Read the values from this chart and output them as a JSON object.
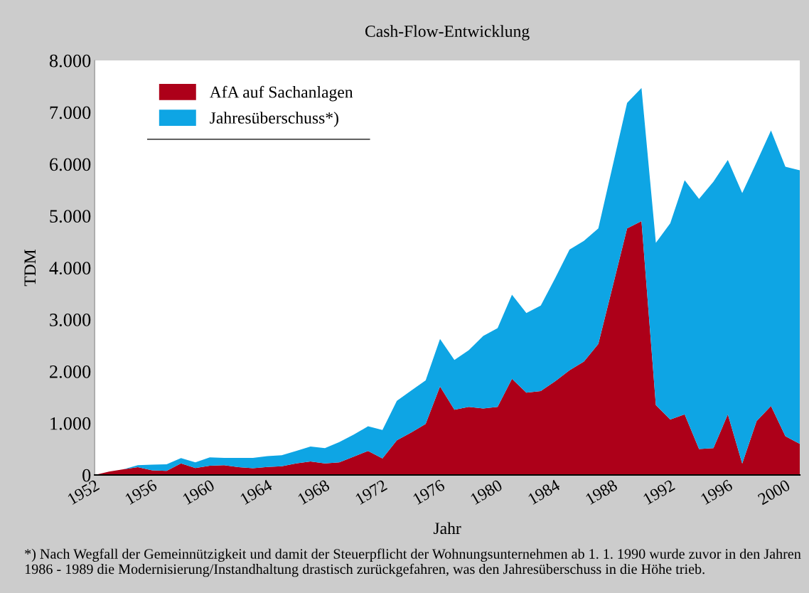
{
  "chart_data": {
    "type": "area",
    "stacked": true,
    "title": "Cash-Flow-Entwicklung",
    "xlabel": "Jahr",
    "ylabel": "TDM",
    "x": [
      1952,
      1953,
      1954,
      1955,
      1956,
      1957,
      1958,
      1959,
      1960,
      1961,
      1962,
      1963,
      1964,
      1965,
      1966,
      1967,
      1968,
      1969,
      1970,
      1971,
      1972,
      1973,
      1974,
      1975,
      1976,
      1977,
      1978,
      1979,
      1980,
      1981,
      1982,
      1983,
      1984,
      1985,
      1986,
      1987,
      1988,
      1989,
      1990,
      1991,
      1992,
      1993,
      1994,
      1995,
      1996,
      1997,
      1998,
      1999,
      2000,
      2001
    ],
    "series": [
      {
        "name": "AfA auf Sachanlagen",
        "color": "#ad0019",
        "values": [
          0,
          65,
          110,
          150,
          90,
          80,
          225,
          135,
          180,
          190,
          150,
          130,
          155,
          170,
          225,
          260,
          225,
          245,
          355,
          465,
          320,
          670,
          820,
          985,
          1710,
          1260,
          1315,
          1285,
          1315,
          1855,
          1590,
          1620,
          1810,
          2020,
          2190,
          2530,
          3640,
          4760,
          4900,
          1350,
          1070,
          1170,
          500,
          520,
          1170,
          220,
          1040,
          1330,
          750,
          600
        ]
      },
      {
        "name": "Jahresüberschuss*)",
        "color": "#0ea5e4",
        "values": [
          0,
          0,
          0,
          40,
          110,
          125,
          100,
          110,
          160,
          140,
          180,
          200,
          210,
          210,
          240,
          290,
          295,
          390,
          425,
          475,
          550,
          760,
          810,
          840,
          915,
          960,
          1095,
          1400,
          1520,
          1625,
          1535,
          1650,
          1990,
          2330,
          2330,
          2230,
          2330,
          2420,
          2570,
          3130,
          3790,
          4520,
          4830,
          5140,
          4910,
          5220,
          5000,
          5320,
          5200,
          5280
        ]
      }
    ],
    "xlim": [
      1952,
      2001
    ],
    "xticks": [
      1952,
      1956,
      1960,
      1964,
      1968,
      1972,
      1976,
      1980,
      1984,
      1988,
      1992,
      1996,
      2000
    ],
    "ylim": [
      0,
      8000
    ],
    "yticks": [
      {
        "value": 0,
        "label": "0"
      },
      {
        "value": 1000,
        "label": "1.000"
      },
      {
        "value": 2000,
        "label": "2.000"
      },
      {
        "value": 3000,
        "label": "3.000"
      },
      {
        "value": 4000,
        "label": "4.000"
      },
      {
        "value": 5000,
        "label": "5.000"
      },
      {
        "value": 6000,
        "label": "6.000"
      },
      {
        "value": 7000,
        "label": "7.000"
      },
      {
        "value": 8000,
        "label": "8.000"
      }
    ],
    "grid": false,
    "legend": "top left",
    "annotations": [
      "*) Nach Wegfall der Gemeinnützigkeit und damit der Steuerpflicht der Wohnungsunternehmen ab 1. 1. 1990 wurde zuvor in den Jahren 1986 - 1989 die Modernisierung/Instandhaltung drastisch zurückgefahren, was den Jahresüberschuss in die Höhe trieb."
    ]
  }
}
